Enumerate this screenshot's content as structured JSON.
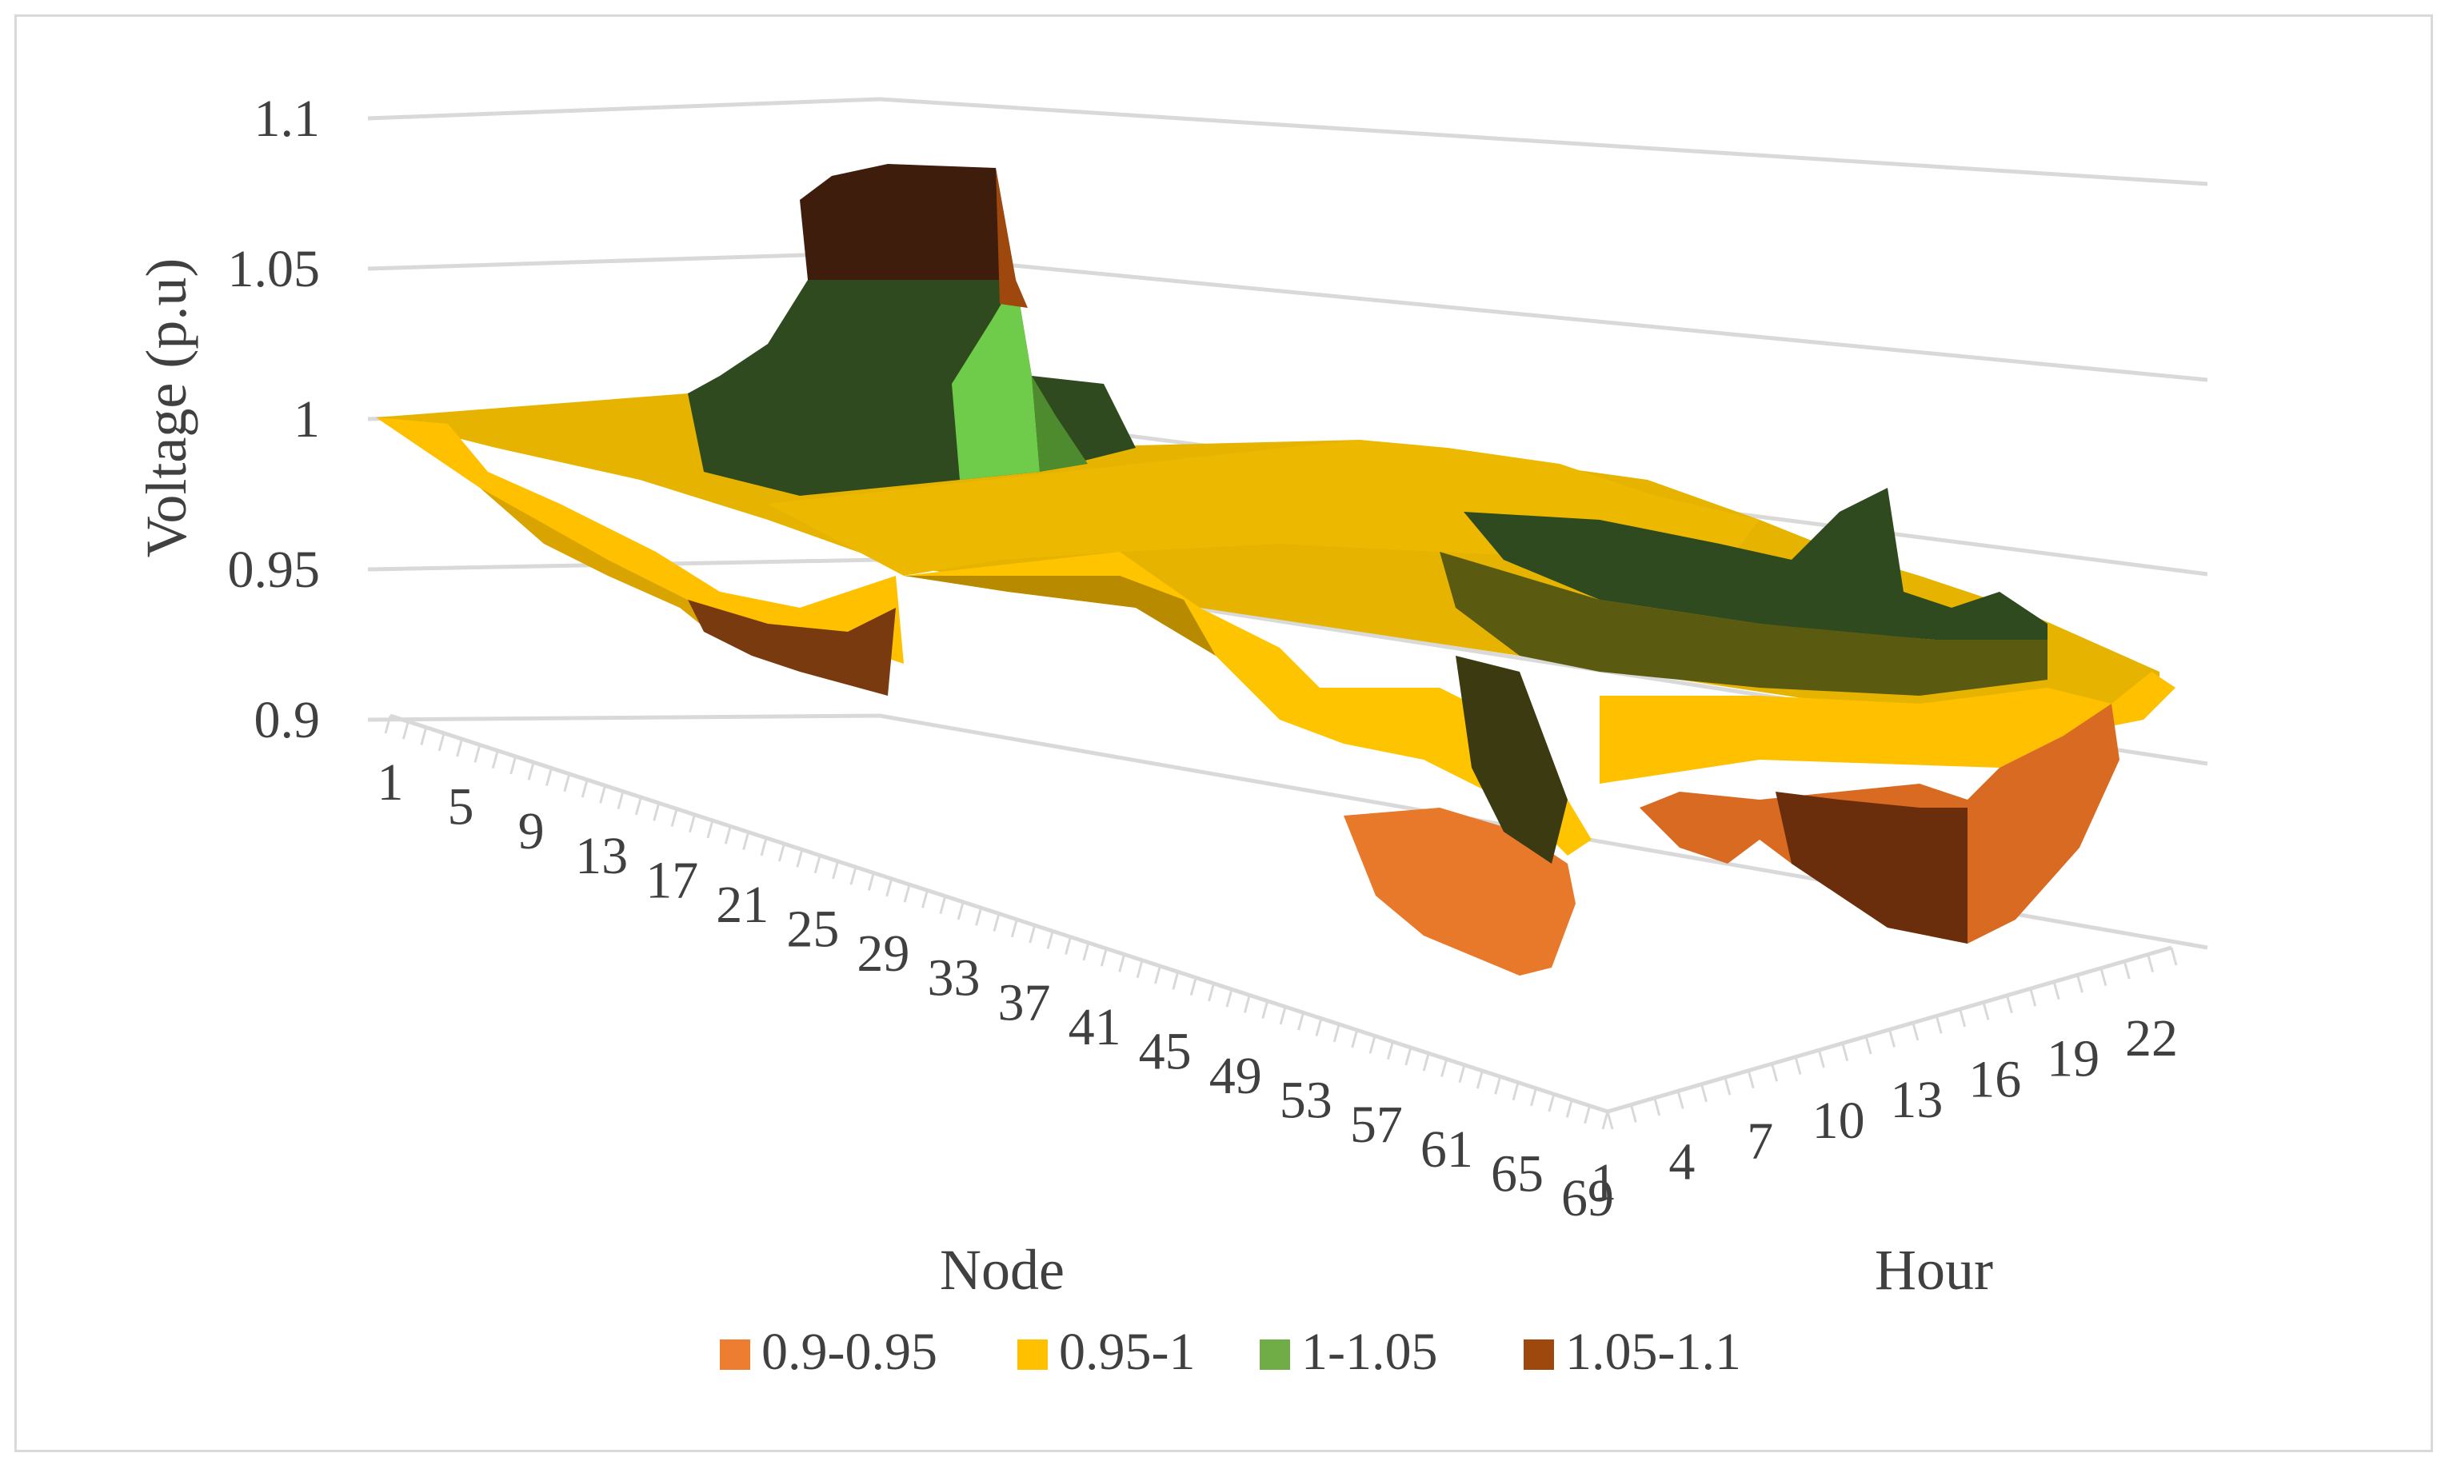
{
  "chart_data": {
    "type": "surface-3d",
    "ylabel": "Voltage (p.u)",
    "xlabel": "Node",
    "zlabel": "Hour",
    "zlim": [
      0.9,
      1.1
    ],
    "z_ticks": [
      "1.1",
      "1.05",
      "1",
      "0.95",
      "0.9"
    ],
    "node_ticks": [
      "1",
      "5",
      "9",
      "13",
      "17",
      "21",
      "25",
      "29",
      "33",
      "37",
      "41",
      "45",
      "49",
      "53",
      "57",
      "61",
      "65",
      "69"
    ],
    "hour_ticks": [
      "1",
      "4",
      "7",
      "10",
      "13",
      "16",
      "19",
      "22"
    ],
    "legend": [
      {
        "label": "0.9-0.95",
        "color": "#ED7D31"
      },
      {
        "label": "0.95-1",
        "color": "#FFC000"
      },
      {
        "label": "1-1.05",
        "color": "#70AD47"
      },
      {
        "label": "1.05-1.1",
        "color": "#9E480E"
      }
    ],
    "surface_profile": {
      "nodes": [
        1,
        5,
        9,
        13,
        17,
        21,
        25,
        29,
        33,
        37,
        41,
        45,
        49,
        53,
        57,
        61,
        65,
        69
      ],
      "front_hour_voltage": [
        1.0,
        0.99,
        0.98,
        0.97,
        0.96,
        0.945,
        0.94,
        0.93,
        0.97,
        0.97,
        0.965,
        0.96,
        0.955,
        0.95,
        0.935,
        0.92,
        0.915,
        0.93
      ],
      "peak_region": {
        "nodes": [
          21,
          37
        ],
        "max_voltage": 1.085
      }
    },
    "grid": true,
    "legend_position": "bottom"
  }
}
